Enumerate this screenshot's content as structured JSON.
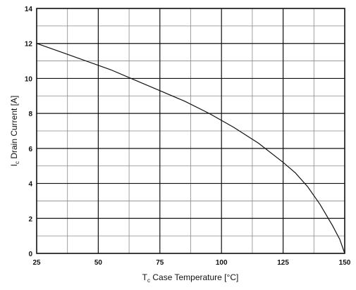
{
  "chart_data": {
    "type": "line",
    "title": "",
    "xlabel": {
      "prefix": "T",
      "subscript": "c",
      "text": " Case Temperature [",
      "unit": "°C",
      "suffix": "]"
    },
    "ylabel": {
      "prefix": "I",
      "subscript": "c",
      "text": " Drain Current [A]"
    },
    "xlim": [
      25,
      150
    ],
    "ylim": [
      0,
      14
    ],
    "x_ticks": [
      25,
      50,
      75,
      100,
      125,
      150
    ],
    "y_ticks": [
      0,
      2,
      4,
      6,
      8,
      10,
      12,
      14
    ],
    "x_minor_per_major": 2,
    "y_minor_per_major": 2,
    "grid": true,
    "series": [
      {
        "x": [
          25,
          35,
          45,
          55,
          65,
          75,
          85,
          95,
          105,
          115,
          125,
          130,
          135,
          140,
          145,
          148,
          150
        ],
        "values": [
          12.0,
          11.5,
          11.0,
          10.5,
          9.9,
          9.3,
          8.7,
          8.0,
          7.2,
          6.3,
          5.2,
          4.6,
          3.8,
          2.8,
          1.6,
          0.8,
          0.0
        ]
      }
    ],
    "line_color": "#111111"
  }
}
